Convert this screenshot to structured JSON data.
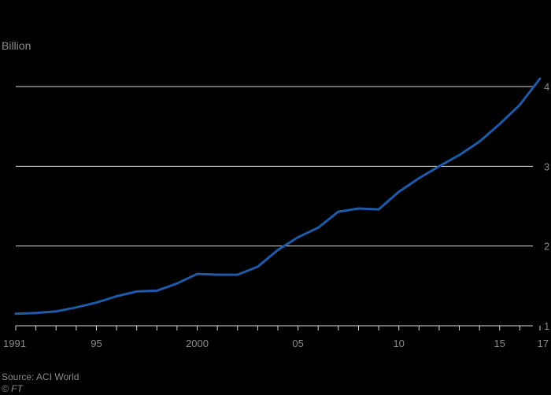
{
  "chart_data": {
    "type": "line",
    "title": "",
    "unit_label": "Billion",
    "xlabel": "",
    "ylabel": "",
    "x": [
      1991,
      1992,
      1993,
      1994,
      1995,
      1996,
      1997,
      1998,
      1999,
      2000,
      2001,
      2002,
      2003,
      2004,
      2005,
      2006,
      2007,
      2008,
      2009,
      2010,
      2011,
      2012,
      2013,
      2014,
      2015,
      2016,
      2017
    ],
    "series": [
      {
        "color": "#1e5aa8",
        "values": [
          1.15,
          1.16,
          1.18,
          1.23,
          1.29,
          1.37,
          1.43,
          1.44,
          1.53,
          1.65,
          1.64,
          1.64,
          1.74,
          1.95,
          2.11,
          2.23,
          2.43,
          2.47,
          2.46,
          2.68,
          2.85,
          3.0,
          3.14,
          3.31,
          3.53,
          3.77,
          4.1
        ]
      }
    ],
    "xlim": [
      1991,
      2017
    ],
    "ylim": [
      1,
      4.1
    ],
    "x_ticks": [
      {
        "value": 1991,
        "label": "1991"
      },
      {
        "value": 1995,
        "label": "95"
      },
      {
        "value": 2000,
        "label": "2000"
      },
      {
        "value": 2005,
        "label": "05"
      },
      {
        "value": 2010,
        "label": "10"
      },
      {
        "value": 2015,
        "label": "15"
      },
      {
        "value": 2017,
        "label": "17"
      }
    ],
    "y_ticks": [
      {
        "value": 1,
        "label": "1"
      },
      {
        "value": 2,
        "label": "2"
      },
      {
        "value": 3,
        "label": "3"
      },
      {
        "value": 4,
        "label": "4"
      }
    ],
    "grid": true,
    "legend": "none"
  },
  "footer": {
    "source": "Source: ACI World",
    "credit": "© FT"
  },
  "colors": {
    "background": "#000000",
    "gridline": "#d9d9d9",
    "text": "#8a8a8a",
    "line": "#1e5aa8"
  }
}
